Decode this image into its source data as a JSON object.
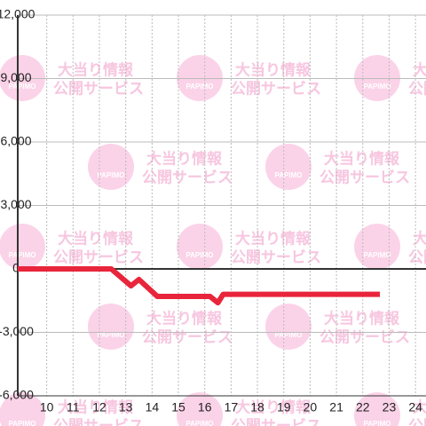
{
  "watermark": {
    "line1": "大当り情報",
    "line2": "公開サービス",
    "logo": "PAPIMO"
  },
  "chart_data": {
    "type": "line",
    "x": [
      8.9,
      12.45,
      13.2,
      13.5,
      14.2,
      16.2,
      16.5,
      16.7,
      22.65
    ],
    "series": [
      {
        "color": "#e8253b",
        "values": [
          0,
          0,
          -800,
          -500,
          -1300,
          -1300,
          -1600,
          -1200,
          -1200
        ]
      }
    ],
    "xlim": [
      8.9,
      24.4
    ],
    "xticks": [
      10,
      11,
      12,
      13,
      14,
      15,
      16,
      17,
      18,
      19,
      20,
      21,
      22,
      23,
      24
    ],
    "ylim": [
      -6000,
      12000
    ],
    "yticks": [
      {
        "value": -6000,
        "label": "-6,000"
      },
      {
        "value": -3000,
        "label": "-3,000"
      },
      0,
      {
        "value": 3000,
        "label": "3,000"
      },
      {
        "value": 6000,
        "label": "6,000"
      },
      {
        "value": 9000,
        "label": "9,000"
      },
      {
        "value": 12000,
        "label": "12,000"
      }
    ],
    "grid": true
  }
}
